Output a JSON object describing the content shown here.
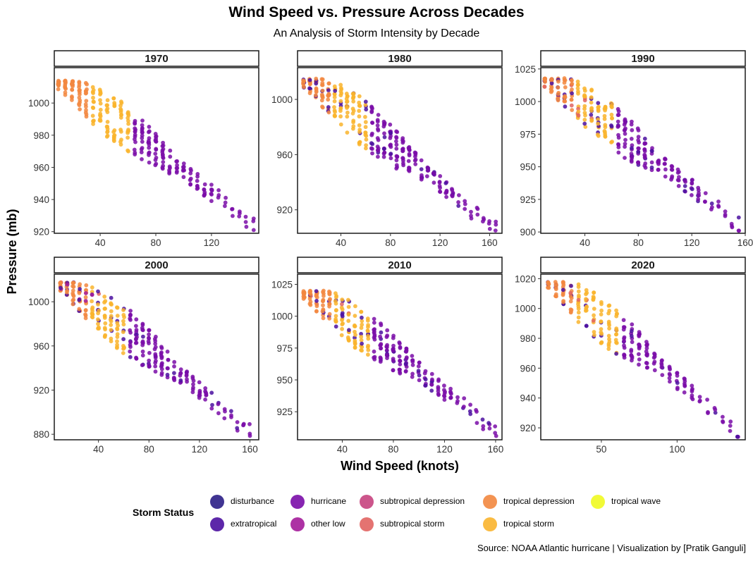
{
  "chart_data": {
    "type": "scatter",
    "title": "Wind Speed vs. Pressure Across Decades",
    "subtitle": "An Analysis of Storm Intensity by Decade",
    "xlabel": "Wind Speed (knots)",
    "ylabel": "Pressure (mb)",
    "caption": "Source: NOAA Atlantic hurricane | Visualization by [Pratik Ganguli]",
    "legend": {
      "title": "Storm Status",
      "position": "bottom",
      "entries": [
        {
          "name": "disturbance",
          "color": "#2B1E86"
        },
        {
          "name": "extratropical",
          "color": "#4B10A0"
        },
        {
          "name": "hurricane",
          "color": "#7A0DA8"
        },
        {
          "name": "other low",
          "color": "#A41C9A"
        },
        {
          "name": "subtropical depression",
          "color": "#C7427E"
        },
        {
          "name": "subtropical storm",
          "color": "#E16462"
        },
        {
          "name": "tropical depression",
          "color": "#F2873F"
        },
        {
          "name": "tropical storm",
          "color": "#F9B42D"
        },
        {
          "name": "tropical wave",
          "color": "#F0F921"
        }
      ]
    },
    "panels": [
      {
        "label": "1970",
        "xlim": [
          7,
          154
        ],
        "ylim": [
          919,
          1022
        ],
        "xticks": [
          40,
          80,
          120
        ],
        "yticks": [
          920,
          940,
          960,
          980,
          1000
        ],
        "x_range": [
          10,
          150
        ],
        "p_hi": 1014,
        "p_lo": 924,
        "series_status": [
          "tropical depression",
          "tropical storm",
          "hurricane"
        ],
        "grid": false
      },
      {
        "label": "1980",
        "xlim": [
          5,
          170
        ],
        "ylim": [
          903,
          1023
        ],
        "xticks": [
          40,
          80,
          120,
          160
        ],
        "yticks": [
          920,
          960,
          1000
        ],
        "x_range": [
          10,
          165
        ],
        "p_hi": 1015,
        "p_lo": 905,
        "series_status": [
          "tropical depression",
          "tropical storm",
          "hurricane",
          "extratropical"
        ],
        "grid": false
      },
      {
        "label": "1990",
        "xlim": [
          7,
          160
        ],
        "ylim": [
          899,
          1026
        ],
        "xticks": [
          40,
          80,
          120,
          160
        ],
        "yticks": [
          900,
          925,
          950,
          975,
          1000,
          1025
        ],
        "x_range": [
          10,
          155
        ],
        "p_hi": 1018,
        "p_lo": 905,
        "series_status": [
          "tropical depression",
          "tropical storm",
          "hurricane",
          "extratropical",
          "subtropical storm"
        ],
        "grid": false
      },
      {
        "label": "2000",
        "xlim": [
          5,
          167
        ],
        "ylim": [
          875,
          1025
        ],
        "xticks": [
          40,
          80,
          120,
          160
        ],
        "yticks": [
          880,
          920,
          960,
          1000
        ],
        "x_range": [
          10,
          160
        ],
        "p_hi": 1018,
        "p_lo": 882,
        "series_status": [
          "tropical depression",
          "tropical storm",
          "hurricane",
          "extratropical",
          "other low",
          "subtropical storm"
        ],
        "grid": false
      },
      {
        "label": "2010",
        "xlim": [
          5,
          165
        ],
        "ylim": [
          903,
          1033
        ],
        "xticks": [
          40,
          80,
          120,
          160
        ],
        "yticks": [
          925,
          950,
          975,
          1000,
          1025
        ],
        "x_range": [
          10,
          160
        ],
        "p_hi": 1020,
        "p_lo": 910,
        "series_status": [
          "tropical depression",
          "tropical storm",
          "hurricane",
          "extratropical",
          "other low",
          "disturbance",
          "subtropical storm"
        ],
        "grid": false
      },
      {
        "label": "2020",
        "xlim": [
          10,
          145
        ],
        "ylim": [
          912,
          1023
        ],
        "xticks": [
          50,
          100
        ],
        "yticks": [
          920,
          940,
          960,
          980,
          1000,
          1020
        ],
        "x_range": [
          15,
          140
        ],
        "p_hi": 1018,
        "p_lo": 918,
        "series_status": [
          "tropical depression",
          "tropical storm",
          "hurricane",
          "extratropical",
          "other low",
          "disturbance",
          "subtropical storm"
        ],
        "grid": false
      }
    ]
  }
}
